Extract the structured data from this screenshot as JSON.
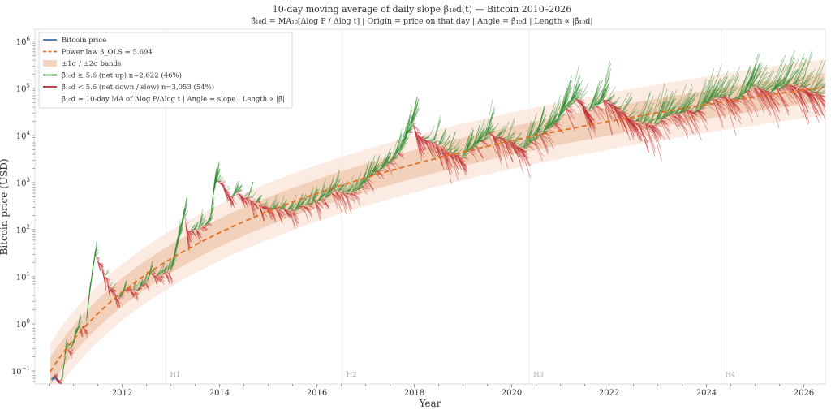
{
  "chart_data": {
    "type": "line",
    "title": "10-day moving average of daily slope β̂₁₀d(t) — Bitcoin 2010–2026",
    "subtitle": "β̂₁₀d = MA₁₀[Δlog P / Δlog t]  |  Origin = price on that day  |  Angle = β̂₁₀d  |  Length ∝ |β̂₁₀d|",
    "xlabel": "Year",
    "ylabel": "Bitcoin price (USD)",
    "xlim": [
      2010.2,
      2026.45
    ],
    "ylim_log10": [
      -1.27,
      6.25
    ],
    "y_scale": "log",
    "grid": false,
    "legend_position": "top-left",
    "x_ticks": [
      "2012",
      "2014",
      "2016",
      "2018",
      "2020",
      "2022",
      "2024",
      "2026"
    ],
    "y_ticks": [
      {
        "base": "10",
        "exp": "−1",
        "log": -1
      },
      {
        "base": "10",
        "exp": "0",
        "log": 0
      },
      {
        "base": "10",
        "exp": "1",
        "log": 1
      },
      {
        "base": "10",
        "exp": "2",
        "log": 2
      },
      {
        "base": "10",
        "exp": "3",
        "log": 3
      },
      {
        "base": "10",
        "exp": "4",
        "log": 4
      },
      {
        "base": "10",
        "exp": "5",
        "log": 5
      },
      {
        "base": "10",
        "exp": "6",
        "log": 6
      }
    ],
    "halvings": [
      {
        "label": "H1",
        "year": 2012.9
      },
      {
        "label": "H2",
        "year": 2016.52
      },
      {
        "label": "H3",
        "year": 2020.36
      },
      {
        "label": "H4",
        "year": 2024.3
      }
    ],
    "power_law": {
      "beta_ols": 5.694,
      "log10_A": -16.63,
      "genesis_year": 2009.01,
      "sigma_decades": 0.3
    },
    "threshold_beta": 5.6,
    "price_series": {
      "name": "Bitcoin price",
      "points": [
        [
          2010.55,
          0.07
        ],
        [
          2010.75,
          0.06
        ],
        [
          2010.85,
          0.3
        ],
        [
          2010.95,
          0.25
        ],
        [
          2011.1,
          0.9
        ],
        [
          2011.25,
          0.8
        ],
        [
          2011.44,
          30
        ],
        [
          2011.6,
          13
        ],
        [
          2011.9,
          3
        ],
        [
          2012.0,
          5
        ],
        [
          2012.3,
          5
        ],
        [
          2012.6,
          11
        ],
        [
          2012.9,
          12
        ],
        [
          2013.0,
          14
        ],
        [
          2013.27,
          200
        ],
        [
          2013.32,
          100
        ],
        [
          2013.5,
          90
        ],
        [
          2013.8,
          150
        ],
        [
          2013.92,
          1100
        ],
        [
          2014.1,
          800
        ],
        [
          2014.2,
          500
        ],
        [
          2014.4,
          600
        ],
        [
          2014.8,
          350
        ],
        [
          2015.0,
          250
        ],
        [
          2015.5,
          250
        ],
        [
          2015.85,
          350
        ],
        [
          2016.0,
          430
        ],
        [
          2016.45,
          700
        ],
        [
          2016.6,
          600
        ],
        [
          2016.9,
          750
        ],
        [
          2017.0,
          1000
        ],
        [
          2017.4,
          2500
        ],
        [
          2017.7,
          4500
        ],
        [
          2017.96,
          19000
        ],
        [
          2018.1,
          9000
        ],
        [
          2018.4,
          7000
        ],
        [
          2018.9,
          3500
        ],
        [
          2019.0,
          3700
        ],
        [
          2019.5,
          11000
        ],
        [
          2019.9,
          7200
        ],
        [
          2020.2,
          5000
        ],
        [
          2020.5,
          9500
        ],
        [
          2020.9,
          19000
        ],
        [
          2021.1,
          40000
        ],
        [
          2021.3,
          60000
        ],
        [
          2021.55,
          32000
        ],
        [
          2021.85,
          65000
        ],
        [
          2022.0,
          46000
        ],
        [
          2022.5,
          20000
        ],
        [
          2022.9,
          16500
        ],
        [
          2023.2,
          28000
        ],
        [
          2023.8,
          35000
        ],
        [
          2024.2,
          70000
        ],
        [
          2024.6,
          58000
        ],
        [
          2024.95,
          100000
        ],
        [
          2025.3,
          80000
        ],
        [
          2025.6,
          118000
        ],
        [
          2025.8,
          120000
        ],
        [
          2026.1,
          90000
        ],
        [
          2026.35,
          70000
        ]
      ]
    },
    "legend": [
      {
        "label": "Bitcoin price",
        "color": "#3b6ea8",
        "style": "line"
      },
      {
        "label": "Power law  β_OLS = 5.694",
        "color": "#e07020",
        "style": "dashed"
      },
      {
        "label": "±1σ / ±2σ bands",
        "color": "#f5d3c0",
        "style": "patch"
      },
      {
        "label": "β̂₁₀d ≥ 5.6  (net up)  n=2,622  (46%)",
        "color": "#2e8b2e",
        "style": "line"
      },
      {
        "label": "β̂₁₀d < 5.6  (net down / slow)  n=3,053  (54%)",
        "color": "#c0282c",
        "style": "line"
      },
      {
        "label": "β̂₁₀d = 10-day MA of Δlog P/Δlog t  |  Angle = slope  |  Length ∝ |β̂|",
        "color": "",
        "style": "none"
      }
    ],
    "colors": {
      "up": "#2e8b2e",
      "down": "#c0282c",
      "price": "#3b6ea8",
      "power_law": "#e07020",
      "band_inner": "#f0c4a8",
      "band_outer": "#fae3d6"
    }
  }
}
